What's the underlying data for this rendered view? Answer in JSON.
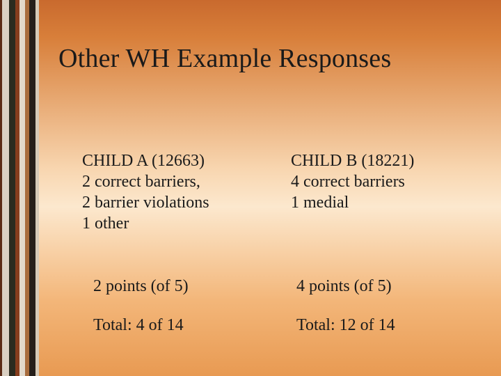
{
  "title": "Other WH Example Responses",
  "colors": {
    "text": "#1a1a1a",
    "gradient_top": "#c96a2e",
    "gradient_mid_light": "#fce8ce",
    "gradient_bottom": "#e89a52",
    "strip": [
      "#5a2a15",
      "#d9cfc2",
      "#2b2b1f",
      "#863d1d",
      "#e2d9cc",
      "#a86c3e",
      "#261f1a",
      "#d6cab8"
    ]
  },
  "typography": {
    "title_fontsize": 38,
    "body_fontsize": 24,
    "font_family": "Times New Roman"
  },
  "columns": [
    {
      "heading": "CHILD A (12663)",
      "lines": [
        "2 correct barriers,",
        "2 barrier violations",
        "1 other"
      ],
      "points": "2 points (of 5)",
      "total": "Total: 4 of 14"
    },
    {
      "heading": "CHILD B (18221)",
      "lines": [
        "4 correct barriers",
        "1 medial"
      ],
      "points": "4 points (of 5)",
      "total": "Total: 12 of 14"
    }
  ]
}
